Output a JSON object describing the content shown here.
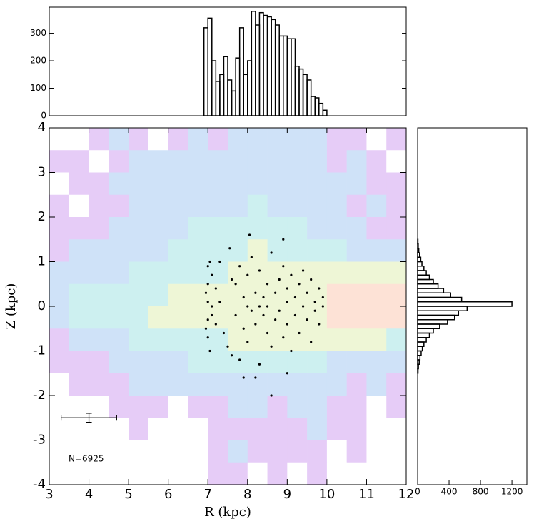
{
  "chart_data": [
    {
      "type": "histogram",
      "orientation": "vertical",
      "bins": [
        6.9,
        7.0,
        7.1,
        7.2,
        7.3,
        7.4,
        7.5,
        7.6,
        7.7,
        7.8,
        7.9,
        8.0,
        8.1,
        8.2,
        8.3,
        8.4,
        8.5,
        8.6,
        8.7,
        8.8,
        8.9,
        9.0,
        9.1,
        9.2,
        9.3,
        9.4,
        9.5,
        9.6,
        9.7,
        9.8,
        9.9,
        10.0
      ],
      "values": [
        320,
        355,
        200,
        125,
        150,
        215,
        130,
        90,
        210,
        320,
        150,
        200,
        380,
        330,
        375,
        365,
        360,
        350,
        330,
        290,
        290,
        280,
        280,
        180,
        170,
        150,
        130,
        70,
        65,
        45,
        20
      ],
      "xlim": [
        3,
        12
      ],
      "ylim": [
        0,
        395
      ],
      "yticks": [
        0,
        100,
        200,
        300
      ],
      "color": "#000000"
    },
    {
      "type": "scatter",
      "xlabel": "R (kpc)",
      "ylabel": "Z (kpc)",
      "xlim": [
        3,
        12
      ],
      "ylim": [
        -4,
        4
      ],
      "xticks": [
        3,
        4,
        5,
        6,
        7,
        8,
        9,
        10,
        11,
        12
      ],
      "yticks": [
        -4,
        -3,
        -2,
        -1,
        0,
        1,
        2,
        3,
        4
      ],
      "annotation": "N=6925",
      "errorbar": {
        "x": 4,
        "y": -2.5,
        "xerr": 0.7,
        "yerr": 0.1
      },
      "color": "#000000",
      "x": [
        7.0,
        7.0,
        7.0,
        7.0,
        7.0,
        7.05,
        7.05,
        6.95,
        6.95,
        7.1,
        7.1,
        7.1,
        7.2,
        7.2,
        7.3,
        7.4,
        7.5,
        7.6,
        7.6,
        7.7,
        7.7,
        7.8,
        7.8,
        7.9,
        7.9,
        8.0,
        8.0,
        8.0,
        8.1,
        8.1,
        8.2,
        8.2,
        8.3,
        8.3,
        8.3,
        8.4,
        8.4,
        8.5,
        8.5,
        8.5,
        8.6,
        8.6,
        8.7,
        8.7,
        8.8,
        8.8,
        8.9,
        8.9,
        9.0,
        9.0,
        9.0,
        9.1,
        9.1,
        9.2,
        9.2,
        9.3,
        9.3,
        9.4,
        9.4,
        9.5,
        9.5,
        9.6,
        9.6,
        9.7,
        9.7,
        9.8,
        9.8,
        9.9,
        9.9,
        8.05,
        7.55,
        8.2,
        9.0,
        7.9,
        8.6,
        7.3,
        8.9
      ],
      "y": [
        0.9,
        0.5,
        0.1,
        -0.3,
        -0.7,
        1.0,
        -1.0,
        0.3,
        -0.5,
        0.7,
        -0.2,
        0.0,
        0.4,
        -0.4,
        0.1,
        -0.6,
        -0.9,
        0.6,
        -1.1,
        0.5,
        -0.2,
        0.9,
        -1.2,
        0.2,
        -0.5,
        0.0,
        0.7,
        -0.8,
        1.1,
        -0.1,
        0.3,
        -0.4,
        0.0,
        0.8,
        -1.3,
        0.2,
        -0.2,
        0.5,
        -0.6,
        0.0,
        1.2,
        -0.9,
        0.3,
        -0.3,
        0.6,
        -0.1,
        0.9,
        -0.7,
        0.1,
        0.4,
        -0.4,
        0.7,
        -1.0,
        0.2,
        -0.2,
        0.5,
        -0.6,
        0.0,
        0.8,
        -0.3,
        0.3,
        0.6,
        -0.8,
        0.1,
        -0.1,
        0.4,
        -0.4,
        0.0,
        0.2,
        1.6,
        1.3,
        -1.6,
        -1.5,
        -1.6,
        -2.0,
        1.0,
        1.5
      ],
      "density": {
        "colors": [
          "#ffffff",
          "#e6ccf7",
          "#cfe2f8",
          "#cdf0f0",
          "#eef6d6",
          "#fde2d6"
        ],
        "x_bins": [
          3,
          3.5,
          4,
          4.5,
          5,
          5.5,
          6,
          6.5,
          7,
          7.5,
          8,
          8.5,
          9,
          9.5,
          10,
          10.5,
          11,
          11.5,
          12
        ],
        "z_bins": [
          4,
          3.5,
          3,
          2.5,
          2,
          1.5,
          1,
          0.5,
          0,
          -0.5,
          -1,
          -1.5,
          -2,
          -2.5,
          -3,
          -3.5,
          -4
        ],
        "values": [
          [
            0,
            0,
            1,
            2,
            1,
            0,
            1,
            2,
            1,
            2,
            2,
            2,
            2,
            2,
            1,
            1,
            0,
            1
          ],
          [
            1,
            1,
            0,
            1,
            2,
            2,
            2,
            2,
            2,
            2,
            2,
            2,
            2,
            2,
            1,
            2,
            1,
            0
          ],
          [
            0,
            1,
            1,
            2,
            2,
            2,
            2,
            2,
            2,
            2,
            2,
            2,
            2,
            2,
            2,
            2,
            1,
            1
          ],
          [
            1,
            0,
            1,
            1,
            2,
            2,
            2,
            2,
            2,
            2,
            3,
            2,
            2,
            2,
            2,
            1,
            2,
            1
          ],
          [
            1,
            1,
            1,
            2,
            2,
            2,
            2,
            3,
            3,
            3,
            3,
            3,
            3,
            2,
            2,
            2,
            1,
            1
          ],
          [
            1,
            2,
            2,
            2,
            2,
            2,
            3,
            3,
            3,
            3,
            4,
            3,
            3,
            3,
            3,
            2,
            2,
            2
          ],
          [
            2,
            2,
            2,
            2,
            3,
            3,
            3,
            3,
            3,
            4,
            4,
            4,
            4,
            4,
            4,
            4,
            4,
            4
          ],
          [
            2,
            3,
            3,
            3,
            3,
            3,
            4,
            4,
            4,
            4,
            4,
            4,
            4,
            4,
            5,
            5,
            5,
            5
          ],
          [
            2,
            3,
            3,
            3,
            3,
            4,
            4,
            4,
            4,
            4,
            4,
            4,
            4,
            4,
            5,
            5,
            5,
            5
          ],
          [
            1,
            2,
            2,
            2,
            3,
            3,
            3,
            3,
            3,
            4,
            4,
            4,
            4,
            4,
            4,
            4,
            4,
            3
          ],
          [
            1,
            1,
            1,
            2,
            2,
            2,
            2,
            3,
            3,
            3,
            3,
            3,
            3,
            3,
            2,
            2,
            2,
            2
          ],
          [
            0,
            1,
            1,
            1,
            2,
            2,
            2,
            2,
            2,
            2,
            2,
            2,
            2,
            2,
            2,
            1,
            2,
            1
          ],
          [
            0,
            0,
            0,
            1,
            1,
            1,
            0,
            1,
            1,
            2,
            2,
            1,
            2,
            2,
            1,
            1,
            0,
            1
          ],
          [
            0,
            0,
            0,
            0,
            1,
            0,
            0,
            0,
            1,
            1,
            1,
            1,
            1,
            2,
            1,
            1,
            0,
            0
          ],
          [
            0,
            0,
            0,
            0,
            0,
            0,
            0,
            0,
            1,
            2,
            1,
            1,
            1,
            1,
            0,
            1,
            0,
            0
          ],
          [
            0,
            0,
            0,
            0,
            0,
            0,
            0,
            0,
            1,
            1,
            0,
            1,
            0,
            1,
            0,
            0,
            0,
            0
          ]
        ]
      }
    },
    {
      "type": "histogram",
      "orientation": "horizontal",
      "bins": [
        -1.5,
        -1.4,
        -1.3,
        -1.2,
        -1.1,
        -1.0,
        -0.9,
        -0.8,
        -0.7,
        -0.6,
        -0.5,
        -0.4,
        -0.3,
        -0.2,
        -0.1,
        0.0,
        0.1,
        0.2,
        0.3,
        0.4,
        0.5,
        0.6,
        0.7,
        0.8,
        0.9,
        1.0,
        1.1,
        1.2,
        1.3,
        1.4,
        1.5
      ],
      "values": [
        5,
        10,
        20,
        30,
        45,
        60,
        80,
        110,
        150,
        200,
        280,
        380,
        470,
        520,
        630,
        1200,
        560,
        420,
        330,
        260,
        200,
        150,
        110,
        80,
        55,
        40,
        25,
        15,
        8,
        4
      ],
      "xlim": [
        0,
        1390
      ],
      "ylim": [
        -4,
        4
      ],
      "xticks": [
        0,
        400,
        800,
        1200
      ],
      "color": "#000000"
    }
  ]
}
